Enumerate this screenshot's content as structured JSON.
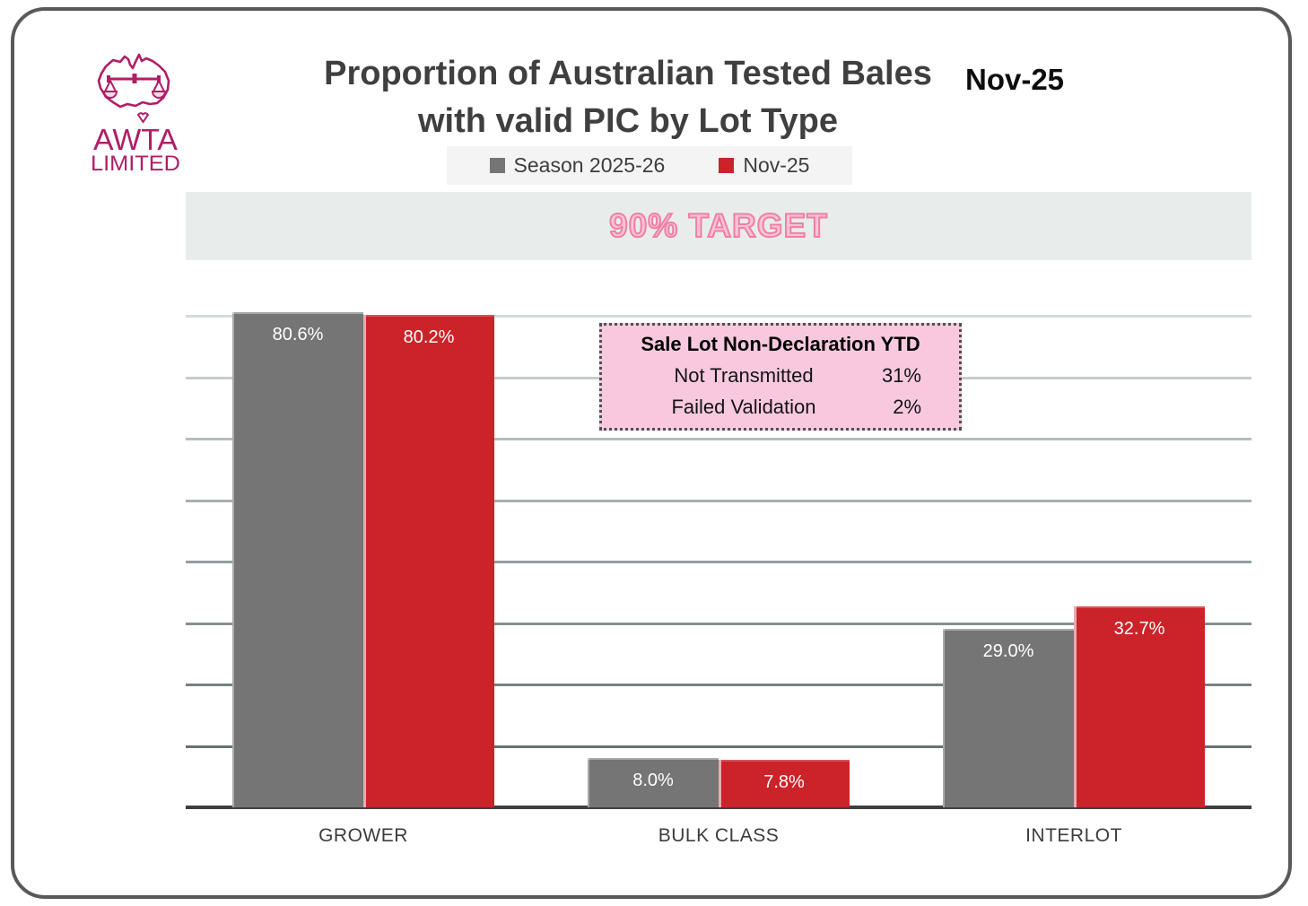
{
  "header": {
    "title_line1": "Proportion of Australian Tested Bales",
    "title_line2": "with valid PIC by Lot Type",
    "date_label": "Nov-25",
    "logo": {
      "line1": "AWTA",
      "line2": "LIMITED",
      "color": "#b01f66"
    }
  },
  "legend": {
    "items": [
      {
        "label": "Season 2025-26",
        "color": "#757575"
      },
      {
        "label": "Nov-25",
        "color": "#cb2329"
      }
    ]
  },
  "target_banner": {
    "text": "90% TARGET",
    "bg": "#e8edec",
    "text_color": "#fbc3d6",
    "outline_color": "#f07fa5"
  },
  "annotation_box": {
    "title": "Sale Lot Non-Declaration YTD",
    "rows": [
      {
        "label": "Not Transmitted",
        "value": "31%"
      },
      {
        "label": "Failed Validation",
        "value": "2%"
      }
    ],
    "bg": "#f8c9de"
  },
  "chart_data": {
    "type": "bar",
    "title": "Proportion of Australian Tested Bales with valid PIC by Lot Type",
    "categories": [
      "GROWER",
      "BULK CLASS",
      "INTERLOT"
    ],
    "series": [
      {
        "name": "Season 2025-26",
        "color": "#757575",
        "values": [
          80.6,
          8.0,
          29.0
        ],
        "labels": [
          "80.6%",
          "8.0%",
          "29.0%"
        ]
      },
      {
        "name": "Nov-25",
        "color": "#cb2329",
        "values": [
          80.2,
          7.8,
          32.7
        ],
        "labels": [
          "80.2%",
          "7.8%",
          "32.7%"
        ]
      }
    ],
    "ylim": [
      0,
      90
    ],
    "gridline_interval": 10,
    "grid": true,
    "target_label": "90% TARGET",
    "target_value": 90,
    "legend_position": "top",
    "gridline_color_top": "#d3dcdb",
    "gridline_color_bottom": "#687272",
    "axis_color": "#3f3f3f"
  }
}
